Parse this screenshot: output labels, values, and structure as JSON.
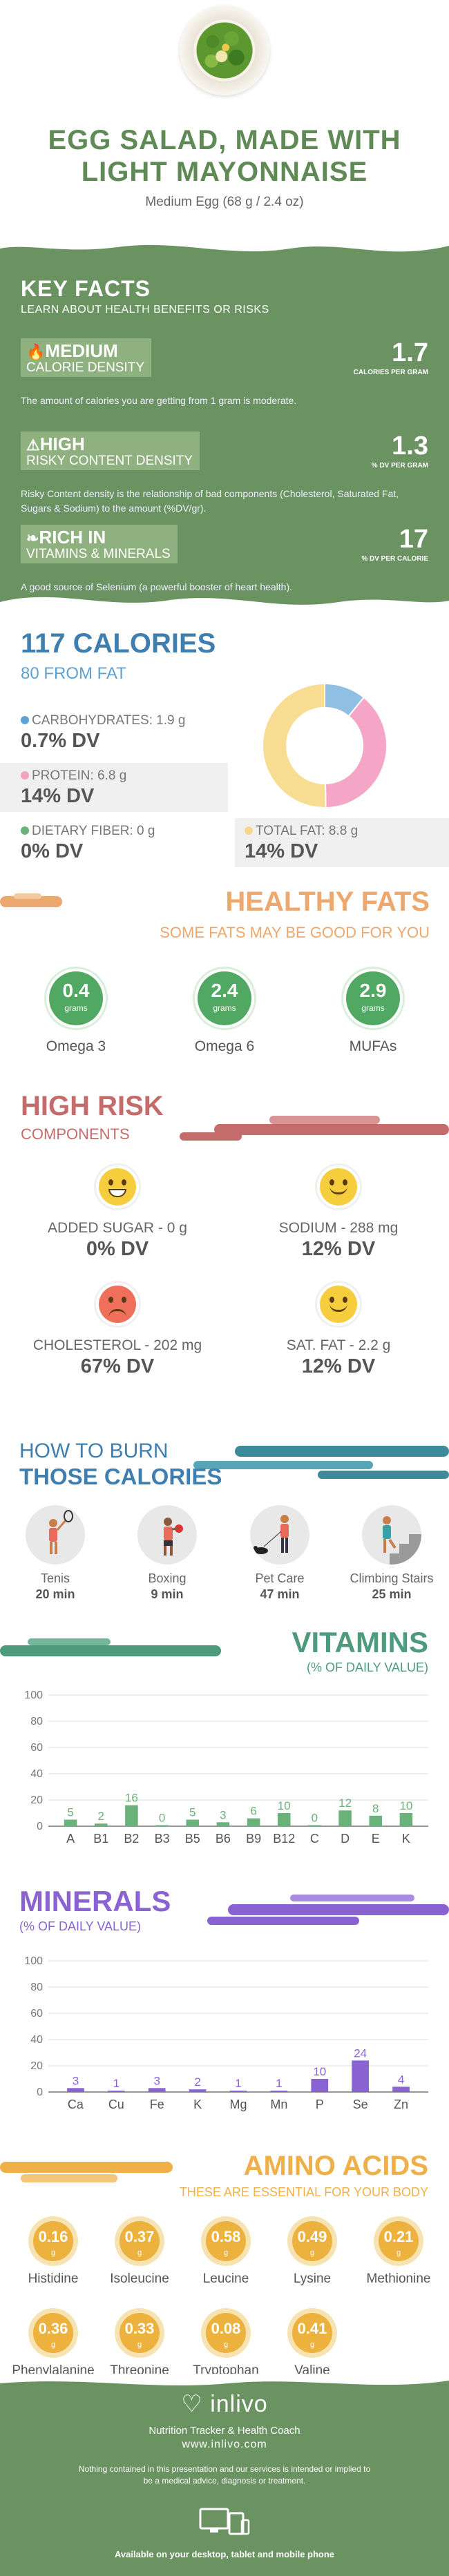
{
  "header": {
    "title_line1": "EGG SALAD, MADE WITH",
    "title_line2": "LIGHT MAYONNAISE",
    "serving": "Medium Egg (68 g / 2.4 oz)"
  },
  "key_facts": {
    "title": "KEY FACTS",
    "subtitle": "LEARN ABOUT HEALTH BENEFITS OR RISKS",
    "facts": [
      {
        "level": "MEDIUM",
        "label": "CALORIE DENSITY",
        "value": "1.7",
        "unit": "CALORIES PER GRAM",
        "description": "The amount of calories you are getting from 1 gram is moderate.",
        "icon": "flame-icon"
      },
      {
        "level": "HIGH",
        "label": "RISKY CONTENT DENSITY",
        "value": "1.3",
        "unit": "% DV PER GRAM",
        "description": "Risky Content density is the relationship of bad components (Cholesterol, Saturated Fat, Sugars & Sodium) to the amount (%DV/gr).",
        "icon": "warning-icon"
      },
      {
        "level": "RICH  IN",
        "label": "VITAMINS & MINERALS",
        "value": "17",
        "unit": "% DV PER CALORIE",
        "description": "A good source of Selenium (a powerful booster of heart health).",
        "icon": "leaf-icon"
      }
    ]
  },
  "calories": {
    "title": "117 CALORIES",
    "from_fat": "80 FROM FAT",
    "nutrients": [
      {
        "label": "CARBOHYDRATES: 1.9 g",
        "dv": "0.7% DV",
        "color": "#5ea2d4"
      },
      {
        "label": "PROTEIN: 6.8 g",
        "dv": "14% DV",
        "color": "#f2a3c0"
      },
      {
        "label": "DIETARY FIBER: 0 g",
        "dv": "0% DV",
        "color": "#6bb27a"
      },
      {
        "label": "TOTAL FAT: 8.8 g",
        "dv": "14% DV",
        "color": "#f7d88a"
      }
    ]
  },
  "chart_data": [
    {
      "type": "pie",
      "categories": [
        "Carbohydrates",
        "Protein",
        "Total Fat"
      ],
      "values": [
        1.9,
        6.8,
        8.8
      ],
      "colors": [
        "#8fbfe3",
        "#f5a6c7",
        "#f8dc92"
      ]
    },
    {
      "type": "bar",
      "title": "VITAMINS",
      "subtitle": "(% OF DAILY VALUE)",
      "categories": [
        "A",
        "B1",
        "B2",
        "B3",
        "B5",
        "B6",
        "B9",
        "B12",
        "C",
        "D",
        "E",
        "K"
      ],
      "values": [
        5,
        2,
        16,
        0,
        5,
        3,
        6,
        10,
        0,
        12,
        8,
        10
      ],
      "yticks": [
        0,
        20,
        40,
        60,
        80,
        100
      ],
      "ylim": [
        0,
        100
      ],
      "color": "#6bb27a"
    },
    {
      "type": "bar",
      "title": "MINERALS",
      "subtitle": "(% OF DAILY VALUE)",
      "categories": [
        "Ca",
        "Cu",
        "Fe",
        "K",
        "Mg",
        "Mn",
        "P",
        "Se",
        "Zn"
      ],
      "values": [
        3,
        1,
        3,
        2,
        1,
        1,
        10,
        24,
        4
      ],
      "yticks": [
        0,
        20,
        40,
        60,
        80,
        100
      ],
      "ylim": [
        0,
        100
      ],
      "color": "#8a63d2"
    }
  ],
  "healthy_fats": {
    "title": "HEALTHY FATS",
    "subtitle": "SOME FATS MAY BE GOOD FOR YOU",
    "items": [
      {
        "value": "0.4",
        "unit": "grams",
        "label": "Omega 3"
      },
      {
        "value": "2.4",
        "unit": "grams",
        "label": "Omega 6"
      },
      {
        "value": "2.9",
        "unit": "grams",
        "label": "MUFAs"
      }
    ]
  },
  "high_risk": {
    "title": "HIGH RISK",
    "subtitle": "COMPONENTS",
    "items": [
      {
        "label": "ADDED SUGAR - 0 g",
        "dv": "0% DV",
        "face": "grin"
      },
      {
        "label": "SODIUM - 288 mg",
        "dv": "12% DV",
        "face": "smile"
      },
      {
        "label": "CHOLESTEROL - 202 mg",
        "dv": "67% DV",
        "face": "sad"
      },
      {
        "label": "SAT. FAT - 2.2 g",
        "dv": "12% DV",
        "face": "smile"
      }
    ]
  },
  "burn": {
    "title_line1": "HOW TO BURN",
    "title_line2": "THOSE CALORIES",
    "activities": [
      {
        "label": "Tenis",
        "minutes": "20 min",
        "icon": "tennis-icon"
      },
      {
        "label": "Boxing",
        "minutes": "9 min",
        "icon": "boxing-icon"
      },
      {
        "label": "Pet Care",
        "minutes": "47 min",
        "icon": "dog-walking-icon"
      },
      {
        "label": "Climbing Stairs",
        "minutes": "25 min",
        "icon": "stairs-icon"
      }
    ]
  },
  "amino_acids": {
    "title": "AMINO ACIDS",
    "subtitle": "THESE ARE ESSENTIAL FOR YOUR BODY",
    "items": [
      {
        "value": "0.16",
        "unit": "g",
        "label": "Histidine"
      },
      {
        "value": "0.37",
        "unit": "g",
        "label": "Isoleucine"
      },
      {
        "value": "0.58",
        "unit": "g",
        "label": "Leucine"
      },
      {
        "value": "0.49",
        "unit": "g",
        "label": "Lysine"
      },
      {
        "value": "0.21",
        "unit": "g",
        "label": "Methionine"
      },
      {
        "value": "0.36",
        "unit": "g",
        "label": "Phenylalanine"
      },
      {
        "value": "0.33",
        "unit": "g",
        "label": "Threonine"
      },
      {
        "value": "0.08",
        "unit": "g",
        "label": "Tryptophan"
      },
      {
        "value": "0.41",
        "unit": "g",
        "label": "Valine"
      }
    ]
  },
  "footer": {
    "brand": "inlivo",
    "tagline": "Nutrition Tracker & Health Coach",
    "url": "www.inlivo.com",
    "disclaimer": "Nothing contained in this presentation and our services is intended or implied to be a medical advice, diagnosis or treatment.",
    "available": "Available on your desktop, tablet and mobile phone"
  }
}
